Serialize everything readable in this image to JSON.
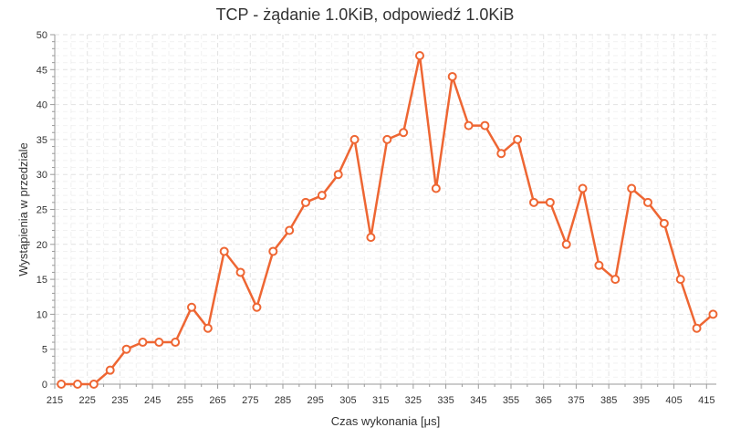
{
  "chart_data": {
    "type": "line",
    "title": "TCP - żądanie 1.0KiB, odpowiedź 1.0KiB",
    "xlabel": "Czas wykonania [μs]",
    "ylabel": "Wystąpienia w przedziale",
    "xlim": [
      215,
      418
    ],
    "ylim": [
      0,
      50
    ],
    "xticks": [
      215,
      225,
      235,
      245,
      255,
      265,
      275,
      285,
      295,
      305,
      315,
      325,
      335,
      345,
      355,
      365,
      375,
      385,
      395,
      405,
      415
    ],
    "yticks": [
      0,
      5,
      10,
      15,
      20,
      25,
      30,
      35,
      40,
      45,
      50
    ],
    "grid": true,
    "legend": "none",
    "series_color": "#ee6633",
    "series": [
      {
        "x": [
          217,
          222,
          227,
          232,
          237,
          242,
          247,
          252,
          257,
          262,
          267,
          272,
          277,
          282,
          287,
          292,
          297,
          302,
          307,
          312,
          317,
          322,
          327,
          332,
          337,
          342,
          347,
          352,
          357,
          362,
          367,
          372,
          377,
          382,
          387,
          392,
          397,
          402,
          407,
          412,
          417
        ],
        "y": [
          0,
          0,
          0,
          2,
          5,
          6,
          6,
          6,
          11,
          8,
          19,
          16,
          11,
          19,
          22,
          26,
          27,
          30,
          35,
          21,
          35,
          36,
          47,
          28,
          44,
          37,
          37,
          33,
          35,
          26,
          26,
          20,
          28,
          17,
          15,
          28,
          26,
          23,
          15,
          8,
          10
        ]
      }
    ]
  }
}
